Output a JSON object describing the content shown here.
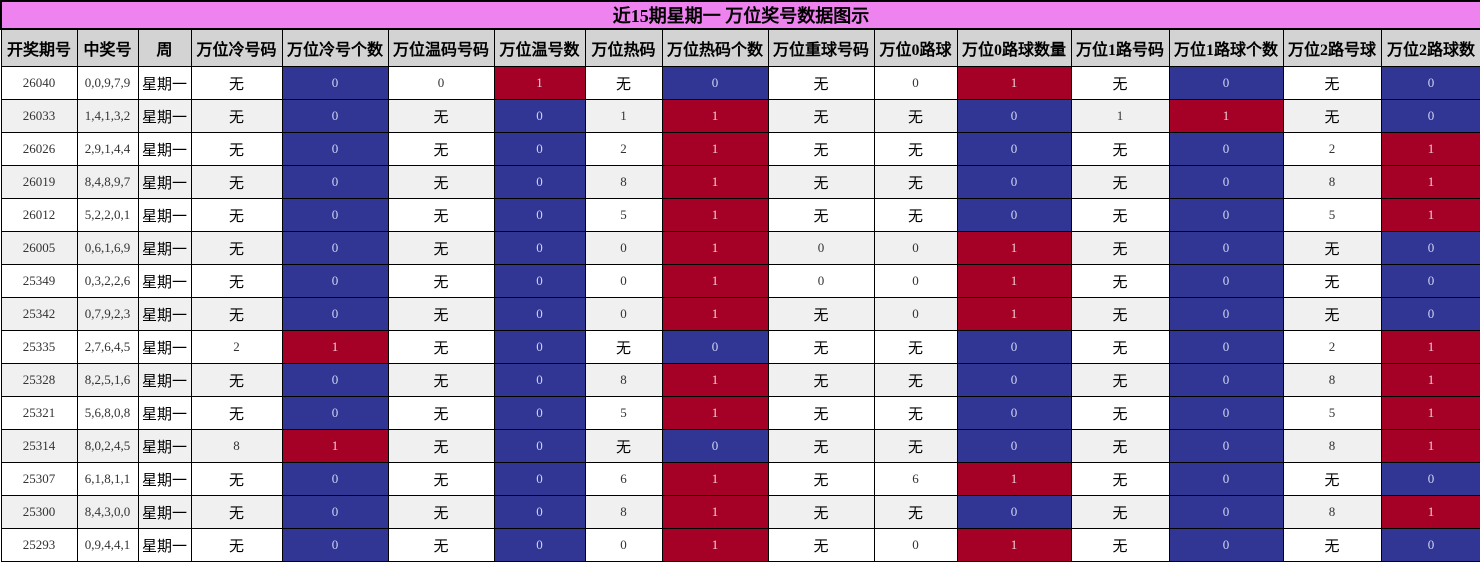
{
  "title": "近15期星期一 万位奖号数据图示",
  "colors": {
    "title_bg": "#ee82ee",
    "header_bg": "#d3d3d3",
    "count_one": "#a50026",
    "count_zero": "#313695"
  },
  "headers": [
    "开奖期号",
    "中奖号",
    "周",
    "万位冷号码",
    "万位冷号个数",
    "万位温码号码",
    "万位温号数",
    "万位热码",
    "万位热码个数",
    "万位重球号码",
    "万位0路球",
    "万位0路球数量",
    "万位1路号码",
    "万位1路球个数",
    "万位2路号球",
    "万位2路球数"
  ],
  "rows": [
    [
      "26040",
      "0,0,9,7,9",
      "星期一",
      "无",
      "0",
      "0",
      "1",
      "无",
      "0",
      "无",
      "0",
      "1",
      "无",
      "0",
      "无",
      "0"
    ],
    [
      "26033",
      "1,4,1,3,2",
      "星期一",
      "无",
      "0",
      "无",
      "0",
      "1",
      "1",
      "无",
      "无",
      "0",
      "1",
      "1",
      "无",
      "0"
    ],
    [
      "26026",
      "2,9,1,4,4",
      "星期一",
      "无",
      "0",
      "无",
      "0",
      "2",
      "1",
      "无",
      "无",
      "0",
      "无",
      "0",
      "2",
      "1"
    ],
    [
      "26019",
      "8,4,8,9,7",
      "星期一",
      "无",
      "0",
      "无",
      "0",
      "8",
      "1",
      "无",
      "无",
      "0",
      "无",
      "0",
      "8",
      "1"
    ],
    [
      "26012",
      "5,2,2,0,1",
      "星期一",
      "无",
      "0",
      "无",
      "0",
      "5",
      "1",
      "无",
      "无",
      "0",
      "无",
      "0",
      "5",
      "1"
    ],
    [
      "26005",
      "0,6,1,6,9",
      "星期一",
      "无",
      "0",
      "无",
      "0",
      "0",
      "1",
      "0",
      "0",
      "1",
      "无",
      "0",
      "无",
      "0"
    ],
    [
      "25349",
      "0,3,2,2,6",
      "星期一",
      "无",
      "0",
      "无",
      "0",
      "0",
      "1",
      "0",
      "0",
      "1",
      "无",
      "0",
      "无",
      "0"
    ],
    [
      "25342",
      "0,7,9,2,3",
      "星期一",
      "无",
      "0",
      "无",
      "0",
      "0",
      "1",
      "无",
      "0",
      "1",
      "无",
      "0",
      "无",
      "0"
    ],
    [
      "25335",
      "2,7,6,4,5",
      "星期一",
      "2",
      "1",
      "无",
      "0",
      "无",
      "0",
      "无",
      "无",
      "0",
      "无",
      "0",
      "2",
      "1"
    ],
    [
      "25328",
      "8,2,5,1,6",
      "星期一",
      "无",
      "0",
      "无",
      "0",
      "8",
      "1",
      "无",
      "无",
      "0",
      "无",
      "0",
      "8",
      "1"
    ],
    [
      "25321",
      "5,6,8,0,8",
      "星期一",
      "无",
      "0",
      "无",
      "0",
      "5",
      "1",
      "无",
      "无",
      "0",
      "无",
      "0",
      "5",
      "1"
    ],
    [
      "25314",
      "8,0,2,4,5",
      "星期一",
      "8",
      "1",
      "无",
      "0",
      "无",
      "0",
      "无",
      "无",
      "0",
      "无",
      "0",
      "8",
      "1"
    ],
    [
      "25307",
      "6,1,8,1,1",
      "星期一",
      "无",
      "0",
      "无",
      "0",
      "6",
      "1",
      "无",
      "6",
      "1",
      "无",
      "0",
      "无",
      "0"
    ],
    [
      "25300",
      "8,4,3,0,0",
      "星期一",
      "无",
      "0",
      "无",
      "0",
      "8",
      "1",
      "无",
      "无",
      "0",
      "无",
      "0",
      "8",
      "1"
    ],
    [
      "25293",
      "0,9,4,4,1",
      "星期一",
      "无",
      "0",
      "无",
      "0",
      "0",
      "1",
      "无",
      "0",
      "1",
      "无",
      "0",
      "无",
      "0"
    ]
  ]
}
